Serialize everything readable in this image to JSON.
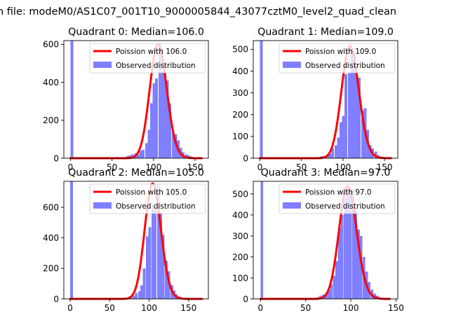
{
  "suptitle": "n file: modeM0/AS1C07_001T10_9000005844_43077cztM0_level2_quad_clean",
  "colors": {
    "hist": "#7f7fff",
    "poisson": "#ff0000"
  },
  "chart_data": [
    {
      "type": "bar",
      "title": "Quadrant 0: Median=106.0",
      "median": 106.0,
      "xlim": [
        -8,
        166
      ],
      "ylim": [
        0,
        620
      ],
      "xticks": [
        0,
        50,
        100,
        150
      ],
      "yticks": [
        0,
        200,
        400,
        600
      ],
      "legend": {
        "position": "top-right",
        "line_label": "Poission with 106.0",
        "hist_label": "Observed distribution"
      },
      "hist": {
        "bin_width": 3.2,
        "bins": [
          {
            "x": 0,
            "y": 620
          },
          {
            "x": 64,
            "y": 5
          },
          {
            "x": 67,
            "y": 12
          },
          {
            "x": 70,
            "y": 15
          },
          {
            "x": 73,
            "y": 20
          },
          {
            "x": 77,
            "y": 25
          },
          {
            "x": 80,
            "y": 18
          },
          {
            "x": 83,
            "y": 40
          },
          {
            "x": 86,
            "y": 45
          },
          {
            "x": 90,
            "y": 80
          },
          {
            "x": 93,
            "y": 150
          },
          {
            "x": 96,
            "y": 290
          },
          {
            "x": 99,
            "y": 395
          },
          {
            "x": 102,
            "y": 420
          },
          {
            "x": 106,
            "y": 600
          },
          {
            "x": 109,
            "y": 455
          },
          {
            "x": 112,
            "y": 460
          },
          {
            "x": 115,
            "y": 410
          },
          {
            "x": 118,
            "y": 290
          },
          {
            "x": 122,
            "y": 145
          },
          {
            "x": 125,
            "y": 125
          },
          {
            "x": 128,
            "y": 95
          },
          {
            "x": 131,
            "y": 55
          },
          {
            "x": 134,
            "y": 32
          },
          {
            "x": 138,
            "y": 20
          },
          {
            "x": 141,
            "y": 15
          },
          {
            "x": 144,
            "y": 10
          },
          {
            "x": 147,
            "y": 5
          }
        ]
      },
      "poisson": {
        "lambda": 106.0,
        "x_range": [
          0,
          158
        ],
        "peak": 600
      }
    },
    {
      "type": "bar",
      "title": "Quadrant 1: Median=109.0",
      "median": 109.0,
      "xlim": [
        -8,
        166
      ],
      "ylim": [
        0,
        540
      ],
      "xticks": [
        0,
        50,
        100,
        150
      ],
      "yticks": [
        0,
        100,
        200,
        300,
        400,
        500
      ],
      "legend": {
        "position": "top-right",
        "line_label": "Poission with 109.0",
        "hist_label": "Observed distribution"
      },
      "hist": {
        "bin_width": 3.2,
        "bins": [
          {
            "x": 0,
            "y": 540
          },
          {
            "x": 70,
            "y": 5
          },
          {
            "x": 73,
            "y": 10
          },
          {
            "x": 77,
            "y": 12
          },
          {
            "x": 80,
            "y": 15
          },
          {
            "x": 83,
            "y": 20
          },
          {
            "x": 86,
            "y": 45
          },
          {
            "x": 90,
            "y": 60
          },
          {
            "x": 93,
            "y": 95
          },
          {
            "x": 96,
            "y": 165
          },
          {
            "x": 99,
            "y": 195
          },
          {
            "x": 102,
            "y": 385
          },
          {
            "x": 106,
            "y": 390
          },
          {
            "x": 109,
            "y": 500
          },
          {
            "x": 112,
            "y": 480
          },
          {
            "x": 115,
            "y": 380
          },
          {
            "x": 118,
            "y": 370
          },
          {
            "x": 122,
            "y": 220
          },
          {
            "x": 125,
            "y": 230
          },
          {
            "x": 128,
            "y": 130
          },
          {
            "x": 131,
            "y": 60
          },
          {
            "x": 134,
            "y": 45
          },
          {
            "x": 138,
            "y": 30
          },
          {
            "x": 141,
            "y": 15
          },
          {
            "x": 144,
            "y": 8
          }
        ]
      },
      "poisson": {
        "lambda": 109.0,
        "x_range": [
          0,
          158
        ],
        "peak": 515
      }
    },
    {
      "type": "bar",
      "title": "Quadrant 2: Median=105.0",
      "median": 105.0,
      "xlim": [
        -8,
        175
      ],
      "ylim": [
        0,
        770
      ],
      "xticks": [
        0,
        50,
        100,
        150
      ],
      "yticks": [
        0,
        200,
        400,
        600
      ],
      "legend": {
        "position": "top-right",
        "line_label": "Poission with 105.0",
        "hist_label": "Observed distribution"
      },
      "hist": {
        "bin_width": 3.4,
        "bins": [
          {
            "x": 0,
            "y": 770
          },
          {
            "x": 68,
            "y": 5
          },
          {
            "x": 72,
            "y": 10
          },
          {
            "x": 75,
            "y": 18
          },
          {
            "x": 79,
            "y": 20
          },
          {
            "x": 82,
            "y": 40
          },
          {
            "x": 86,
            "y": 50
          },
          {
            "x": 89,
            "y": 90
          },
          {
            "x": 92,
            "y": 200
          },
          {
            "x": 96,
            "y": 410
          },
          {
            "x": 99,
            "y": 470
          },
          {
            "x": 103,
            "y": 620
          },
          {
            "x": 106,
            "y": 590
          },
          {
            "x": 110,
            "y": 750
          },
          {
            "x": 113,
            "y": 560
          },
          {
            "x": 116,
            "y": 420
          },
          {
            "x": 120,
            "y": 250
          },
          {
            "x": 123,
            "y": 180
          },
          {
            "x": 127,
            "y": 90
          },
          {
            "x": 130,
            "y": 55
          },
          {
            "x": 133,
            "y": 30
          },
          {
            "x": 137,
            "y": 15
          },
          {
            "x": 140,
            "y": 8
          }
        ]
      },
      "poisson": {
        "lambda": 105.0,
        "x_range": [
          0,
          167
        ],
        "peak": 755
      }
    },
    {
      "type": "bar",
      "title": "Quadrant 3: Median=97.0",
      "median": 97.0,
      "xlim": [
        -8,
        152
      ],
      "ylim": [
        0,
        560
      ],
      "xticks": [
        0,
        50,
        100,
        150
      ],
      "yticks": [
        0,
        100,
        200,
        300,
        400,
        500
      ],
      "legend": {
        "position": "top-right",
        "line_label": "Poission with 97.0",
        "hist_label": "Observed distribution"
      },
      "hist": {
        "bin_width": 2.9,
        "bins": [
          {
            "x": 0,
            "y": 560
          },
          {
            "x": 55,
            "y": 5
          },
          {
            "x": 62,
            "y": 8
          },
          {
            "x": 65,
            "y": 15
          },
          {
            "x": 68,
            "y": 20
          },
          {
            "x": 71,
            "y": 25
          },
          {
            "x": 74,
            "y": 40
          },
          {
            "x": 77,
            "y": 70
          },
          {
            "x": 80,
            "y": 110
          },
          {
            "x": 83,
            "y": 180
          },
          {
            "x": 86,
            "y": 340
          },
          {
            "x": 89,
            "y": 400
          },
          {
            "x": 92,
            "y": 480
          },
          {
            "x": 95,
            "y": 540
          },
          {
            "x": 98,
            "y": 490
          },
          {
            "x": 101,
            "y": 520
          },
          {
            "x": 104,
            "y": 420
          },
          {
            "x": 107,
            "y": 330
          },
          {
            "x": 110,
            "y": 300
          },
          {
            "x": 113,
            "y": 200
          },
          {
            "x": 116,
            "y": 130
          },
          {
            "x": 119,
            "y": 80
          },
          {
            "x": 122,
            "y": 45
          },
          {
            "x": 125,
            "y": 25
          },
          {
            "x": 128,
            "y": 15
          },
          {
            "x": 131,
            "y": 8
          }
        ]
      },
      "poisson": {
        "lambda": 97.0,
        "x_range": [
          0,
          143
        ],
        "peak": 535
      }
    }
  ]
}
